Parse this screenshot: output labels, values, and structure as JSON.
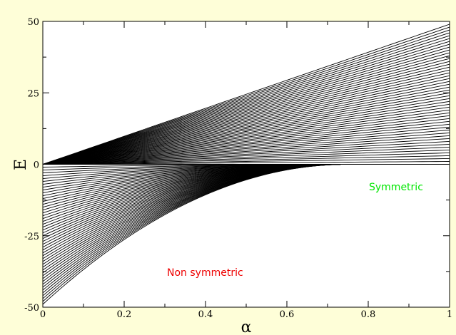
{
  "chart_data": {
    "type": "line",
    "title": "",
    "xlabel": "α",
    "ylabel": "E",
    "xlim": [
      0,
      1
    ],
    "ylim": [
      -50,
      50
    ],
    "grid": false,
    "x_ticks": [
      0,
      0.2,
      0.4,
      0.6,
      0.8,
      1
    ],
    "x_tick_labels": [
      "0",
      "0.2",
      "0.4",
      "0.6",
      "0.8",
      "1"
    ],
    "y_ticks": [
      50,
      25,
      0,
      -25,
      -50
    ],
    "y_tick_labels": [
      "50",
      "25",
      "0",
      "-25",
      "-50"
    ],
    "series_count": 49,
    "symmetric_endpoints_at_x1": [
      0,
      1,
      2,
      3,
      4,
      5,
      6,
      7,
      8,
      9,
      10,
      11,
      12,
      13,
      14,
      15,
      16,
      17,
      18,
      19,
      20,
      21,
      22,
      23,
      24,
      25,
      26,
      27,
      28,
      29,
      30,
      31,
      32,
      33,
      34,
      35,
      36,
      37,
      38,
      39,
      40,
      41,
      42,
      43,
      44,
      45,
      46,
      47,
      48,
      49
    ],
    "nonsymmetric_start_values_at_x0": [
      -1,
      -2,
      -3,
      -4,
      -5,
      -6,
      -7,
      -8,
      -9,
      -10,
      -11,
      -12,
      -13,
      -14,
      -15,
      -16,
      -17,
      -18,
      -19,
      -20,
      -21,
      -22,
      -23,
      -24,
      -25,
      -26,
      -27,
      -28,
      -29,
      -30,
      -31,
      -32,
      -33,
      -34,
      -35,
      -36,
      -37,
      -38,
      -39,
      -40,
      -41,
      -42,
      -43,
      -44,
      -45,
      -46,
      -47,
      -48,
      -49
    ],
    "crossing_alpha": 0.75,
    "annotations": [
      {
        "text": "Symmetric",
        "color": "#00e600"
      },
      {
        "text": "Non symmetric",
        "color": "#ee0000"
      }
    ]
  }
}
